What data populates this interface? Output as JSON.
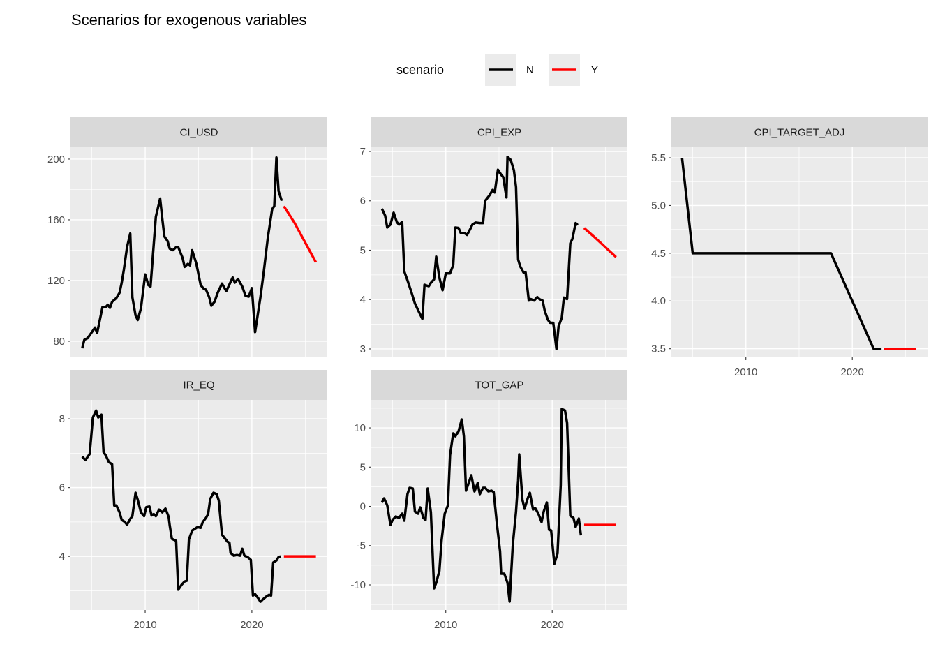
{
  "title": "Scenarios for exogenous variables",
  "legend_title": "scenario",
  "chart_data": [
    {
      "type": "line",
      "title": "CI_USD",
      "xlim": [
        2003.0,
        2027.07
      ],
      "xticks": [
        2010,
        2020
      ],
      "ylim": [
        69.4,
        207.8
      ],
      "yticks": [
        80,
        120,
        160,
        200
      ],
      "grid": true,
      "series": [
        {
          "name": "N",
          "color": "#000000",
          "x": [
            2004.1,
            2004.3,
            2004.6,
            2004.9,
            2005.3,
            2005.5,
            2006.0,
            2006.3,
            2006.5,
            2006.7,
            2006.9,
            2007.3,
            2007.6,
            2007.8,
            2008.0,
            2008.3,
            2008.6,
            2008.8,
            2009.1,
            2009.3,
            2009.6,
            2010.0,
            2010.3,
            2010.5,
            2011.0,
            2011.4,
            2011.6,
            2011.8,
            2012.1,
            2012.3,
            2012.6,
            2012.9,
            2013.1,
            2013.5,
            2013.7,
            2014.0,
            2014.2,
            2014.4,
            2014.8,
            2015.2,
            2015.5,
            2015.7,
            2016.0,
            2016.2,
            2016.5,
            2016.8,
            2017.2,
            2017.6,
            2018.0,
            2018.2,
            2018.4,
            2018.7,
            2019.1,
            2019.4,
            2019.7,
            2020.0,
            2020.3,
            2020.8,
            2021.1,
            2021.5,
            2021.9,
            2022.1,
            2022.3,
            2022.5,
            2022.8
          ],
          "values": [
            75.4,
            81,
            82,
            85,
            89,
            85.5,
            102.5,
            102.5,
            104,
            102,
            106,
            108.5,
            112,
            118.6,
            127,
            142,
            151,
            109,
            97,
            94,
            101.6,
            124,
            117,
            116,
            162,
            174,
            161,
            149,
            146,
            141,
            140,
            142,
            142,
            135,
            129,
            131,
            130,
            140,
            131,
            117,
            114.5,
            114,
            109,
            103.4,
            106,
            112,
            118,
            113,
            119,
            122,
            118.6,
            121,
            116,
            110,
            109.4,
            115,
            86,
            109,
            125,
            148.5,
            167,
            169,
            201,
            179,
            172.5
          ]
        },
        {
          "name": "Y",
          "color": "#ff0000",
          "x": [
            2023,
            2024,
            2025,
            2026
          ],
          "values": [
            169,
            158,
            145,
            132
          ]
        }
      ]
    },
    {
      "type": "line",
      "title": "CPI_EXP",
      "xlim": [
        2003.0,
        2027.07
      ],
      "xticks": [
        2010,
        2020
      ],
      "ylim": [
        2.83,
        7.085
      ],
      "yticks": [
        3,
        4,
        5,
        6,
        7
      ],
      "grid": true,
      "series": [
        {
          "name": "N",
          "color": "#000000",
          "x": [
            2004.0,
            2004.3,
            2004.5,
            2004.8,
            2005.1,
            2005.4,
            2005.6,
            2005.9,
            2006.1,
            2006.4,
            2006.8,
            2007.1,
            2007.5,
            2007.8,
            2008.0,
            2008.4,
            2008.6,
            2008.9,
            2009.1,
            2009.4,
            2009.7,
            2010.0,
            2010.4,
            2010.7,
            2010.9,
            2011.2,
            2011.4,
            2011.8,
            2012.0,
            2012.3,
            2012.5,
            2012.8,
            2013.2,
            2013.5,
            2013.7,
            2014.1,
            2014.4,
            2014.6,
            2014.9,
            2015.2,
            2015.4,
            2015.7,
            2015.8,
            2016.1,
            2016.4,
            2016.6,
            2016.8,
            2017.0,
            2017.3,
            2017.5,
            2017.8,
            2018.0,
            2018.3,
            2018.6,
            2018.8,
            2019.1,
            2019.3,
            2019.6,
            2019.8,
            2020.1,
            2020.4,
            2020.6,
            2020.9,
            2021.1,
            2021.4,
            2021.7,
            2021.9,
            2022.2,
            2022.4
          ],
          "values": [
            5.84,
            5.7,
            5.46,
            5.52,
            5.76,
            5.57,
            5.52,
            5.57,
            4.57,
            4.39,
            4.13,
            3.92,
            3.74,
            3.61,
            4.3,
            4.27,
            4.34,
            4.41,
            4.87,
            4.44,
            4.19,
            4.53,
            4.53,
            4.7,
            5.46,
            5.45,
            5.35,
            5.34,
            5.31,
            5.43,
            5.52,
            5.56,
            5.55,
            5.55,
            6.0,
            6.11,
            6.22,
            6.17,
            6.63,
            6.53,
            6.48,
            6.07,
            6.89,
            6.83,
            6.62,
            6.28,
            4.81,
            4.67,
            4.55,
            4.55,
            3.98,
            4.01,
            3.98,
            4.05,
            4.01,
            3.98,
            3.77,
            3.59,
            3.53,
            3.53,
            3.0,
            3.46,
            3.63,
            4.04,
            4.01,
            5.14,
            5.23,
            5.55,
            5.51
          ]
        },
        {
          "name": "Y",
          "color": "#ff0000",
          "x": [
            2023,
            2024,
            2025,
            2026
          ],
          "values": [
            5.45,
            5.26,
            5.06,
            4.86
          ]
        }
      ]
    },
    {
      "type": "line",
      "title": "CPI_TARGET_ADJ",
      "xlim": [
        2003.0,
        2027.07
      ],
      "xticks": [
        2010,
        2020
      ],
      "ylim": [
        3.41,
        5.61
      ],
      "yticks": [
        3.5,
        {
          "value": 4,
          "label": "4.0"
        },
        4.5,
        {
          "value": 5,
          "label": "5.0"
        },
        5.5
      ],
      "grid": true,
      "series": [
        {
          "name": "N",
          "color": "#000000",
          "x": [
            2004.0,
            2005.0,
            2018.0,
            2022.0,
            2022.75
          ],
          "values": [
            5.5,
            4.5,
            4.5,
            3.5,
            3.5
          ]
        },
        {
          "name": "Y",
          "color": "#ff0000",
          "x": [
            2023,
            2024,
            2025,
            2026
          ],
          "values": [
            3.5,
            3.5,
            3.5,
            3.5
          ]
        }
      ]
    },
    {
      "type": "line",
      "title": "IR_EQ",
      "xlim": [
        2003.0,
        2027.07
      ],
      "xticks": [
        2010,
        2020
      ],
      "ylim": [
        2.44,
        8.55
      ],
      "yticks": [
        4,
        6,
        8
      ],
      "grid": true,
      "series": [
        {
          "name": "N",
          "color": "#000000",
          "x": [
            2004.1,
            2004.4,
            2004.8,
            2005.1,
            2005.4,
            2005.6,
            2005.9,
            2006.1,
            2006.3,
            2006.6,
            2006.9,
            2007.1,
            2007.3,
            2007.6,
            2007.8,
            2008.1,
            2008.3,
            2008.6,
            2008.8,
            2009.1,
            2009.3,
            2009.6,
            2009.9,
            2010.1,
            2010.4,
            2010.6,
            2010.8,
            2011.0,
            2011.3,
            2011.6,
            2011.9,
            2012.2,
            2012.3,
            2012.5,
            2012.9,
            2013.1,
            2013.4,
            2013.7,
            2013.9,
            2014.1,
            2014.4,
            2014.6,
            2014.9,
            2015.2,
            2015.4,
            2015.7,
            2015.9,
            2016.1,
            2016.4,
            2016.7,
            2016.9,
            2017.2,
            2017.4,
            2017.7,
            2017.9,
            2018.0,
            2018.3,
            2018.6,
            2018.9,
            2019.1,
            2019.3,
            2019.6,
            2019.9,
            2020.1,
            2020.3,
            2020.6,
            2020.8,
            2021.0,
            2021.3,
            2021.6,
            2021.8,
            2022.0,
            2022.3,
            2022.5,
            2022.7
          ],
          "values": [
            6.9,
            6.8,
            6.98,
            8.04,
            8.24,
            8.04,
            8.12,
            7.03,
            6.94,
            6.74,
            6.68,
            5.48,
            5.48,
            5.28,
            5.06,
            5.0,
            4.92,
            5.09,
            5.17,
            5.85,
            5.65,
            5.28,
            5.17,
            5.43,
            5.45,
            5.19,
            5.23,
            5.17,
            5.36,
            5.28,
            5.39,
            5.15,
            4.9,
            4.51,
            4.45,
            3.03,
            3.17,
            3.27,
            3.29,
            4.49,
            4.75,
            4.79,
            4.85,
            4.83,
            5.0,
            5.12,
            5.23,
            5.67,
            5.85,
            5.81,
            5.62,
            4.63,
            4.55,
            4.43,
            4.39,
            4.1,
            4.02,
            4.04,
            4.02,
            4.22,
            4.02,
            3.98,
            3.9,
            2.86,
            2.9,
            2.78,
            2.68,
            2.74,
            2.82,
            2.88,
            2.86,
            3.82,
            3.88,
            3.98,
            4.0
          ]
        },
        {
          "name": "Y",
          "color": "#ff0000",
          "x": [
            2023,
            2024,
            2025,
            2026
          ],
          "values": [
            4.0,
            4.0,
            4.0,
            4.0
          ]
        }
      ]
    },
    {
      "type": "line",
      "title": "TOT_GAP",
      "xlim": [
        2003.0,
        2027.07
      ],
      "xticks": [
        2010,
        2020
      ],
      "ylim": [
        -13.2,
        13.56
      ],
      "yticks": [
        -10,
        -5,
        0,
        5,
        10
      ],
      "grid": true,
      "series": [
        {
          "name": "N",
          "color": "#000000",
          "x": [
            2004.0,
            2004.2,
            2004.5,
            2004.8,
            2005.0,
            2005.3,
            2005.6,
            2005.9,
            2006.1,
            2006.4,
            2006.6,
            2006.9,
            2007.1,
            2007.4,
            2007.6,
            2007.9,
            2008.1,
            2008.3,
            2008.6,
            2008.9,
            2009.1,
            2009.4,
            2009.6,
            2009.9,
            2010.2,
            2010.4,
            2010.7,
            2010.9,
            2011.2,
            2011.5,
            2011.7,
            2011.9,
            2012.2,
            2012.4,
            2012.7,
            2013.0,
            2013.2,
            2013.5,
            2013.7,
            2014.0,
            2014.3,
            2014.5,
            2014.8,
            2015.1,
            2015.2,
            2015.5,
            2015.8,
            2016.0,
            2016.3,
            2016.6,
            2016.8,
            2016.9,
            2017.2,
            2017.4,
            2017.7,
            2017.9,
            2018.2,
            2018.4,
            2018.7,
            2019.0,
            2019.2,
            2019.5,
            2019.7,
            2019.9,
            2020.2,
            2020.5,
            2020.8,
            2020.9,
            2021.2,
            2021.4,
            2021.7,
            2022.0,
            2022.2,
            2022.5,
            2022.7
          ],
          "values": [
            0.49,
            1.02,
            0.13,
            -2.36,
            -1.73,
            -1.29,
            -1.47,
            -0.93,
            -1.82,
            1.56,
            2.36,
            2.27,
            -0.67,
            -0.93,
            -0.13,
            -1.47,
            -1.73,
            2.27,
            -0.76,
            -10.44,
            -9.73,
            -8.22,
            -4.4,
            -0.93,
            0.13,
            6.53,
            9.29,
            8.93,
            9.56,
            11.07,
            8.93,
            2.0,
            3.16,
            3.96,
            1.91,
            2.98,
            1.56,
            2.36,
            2.36,
            1.91,
            2.0,
            1.82,
            -2.18,
            -5.73,
            -8.58,
            -8.58,
            -9.73,
            -12.13,
            -4.84,
            -0.67,
            3.33,
            6.62,
            0.84,
            -0.31,
            1.02,
            1.73,
            -0.4,
            -0.22,
            -0.93,
            -2.0,
            -0.67,
            0.49,
            -2.98,
            -3.07,
            -7.33,
            -6.0,
            2.71,
            12.4,
            12.22,
            10.62,
            -1.2,
            -1.47,
            -2.62,
            -1.56,
            -3.69
          ]
        },
        {
          "name": "Y",
          "color": "#ff0000",
          "x": [
            2023,
            2024,
            2025,
            2026
          ],
          "values": [
            -2.36,
            -2.36,
            -2.36,
            -2.36
          ]
        }
      ]
    }
  ]
}
